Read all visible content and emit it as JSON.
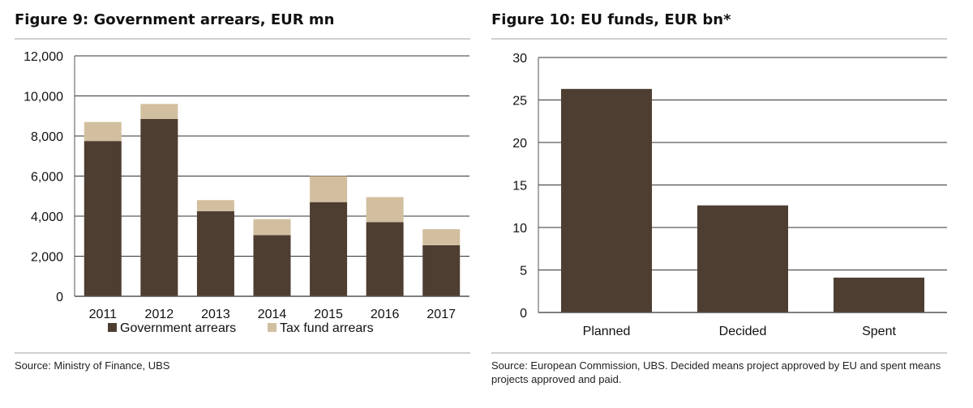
{
  "figure9": {
    "title": "Figure 9: Government arrears, EUR mn",
    "source": "Source:  Ministry of Finance, UBS"
  },
  "figure10": {
    "title": "Figure 10: EU funds, EUR bn*",
    "source": "Source:  European Commission, UBS. Decided means project approved by EU and spent means projects approved and paid."
  },
  "colors": {
    "dark": "#4e3e32",
    "light": "#d2bf9f",
    "axis": "#555555",
    "grid": "#333333"
  },
  "chart_data": [
    {
      "type": "bar",
      "stacked": true,
      "title": "Figure 9: Government arrears, EUR mn",
      "categories": [
        "2011",
        "2012",
        "2013",
        "2014",
        "2015",
        "2016",
        "2017"
      ],
      "series": [
        {
          "name": "Government arrears",
          "values": [
            7750,
            8850,
            4250,
            3050,
            4700,
            3700,
            2550
          ]
        },
        {
          "name": "Tax fund arrears",
          "values": [
            950,
            750,
            550,
            800,
            1300,
            1250,
            800
          ]
        }
      ],
      "ylim": [
        0,
        12000
      ],
      "yticks": [
        0,
        2000,
        4000,
        6000,
        8000,
        10000,
        12000
      ],
      "ytick_labels": [
        "0",
        "2,000",
        "4,000",
        "6,000",
        "8,000",
        "10,000",
        "12,000"
      ],
      "legend": "bottom",
      "grid": true
    },
    {
      "type": "bar",
      "title": "Figure 10: EU funds, EUR bn*",
      "categories": [
        "Planned",
        "Decided",
        "Spent"
      ],
      "values": [
        26.3,
        12.6,
        4.1
      ],
      "ylim": [
        0,
        30
      ],
      "yticks": [
        0,
        5,
        10,
        15,
        20,
        25,
        30
      ],
      "ytick_labels": [
        "0",
        "5",
        "10",
        "15",
        "20",
        "25",
        "30"
      ],
      "grid": true
    }
  ]
}
